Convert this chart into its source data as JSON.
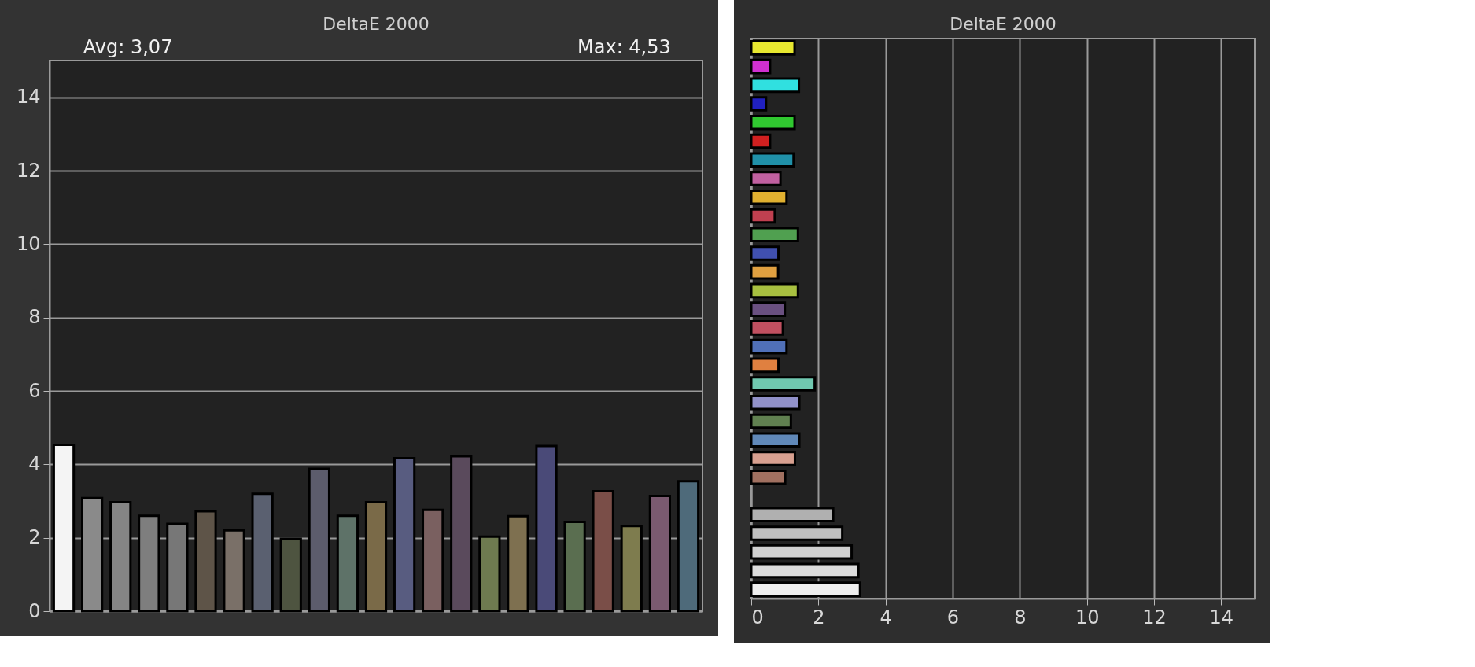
{
  "chart_data": [
    {
      "type": "bar",
      "title": "DeltaE 2000",
      "annotations": [
        "Avg: 3,07",
        "Max: 4,53"
      ],
      "categories": [
        null,
        null,
        null,
        null,
        null,
        null,
        null,
        null,
        null,
        null,
        null,
        null,
        null,
        null,
        null,
        null,
        null,
        null,
        null,
        null,
        null,
        null,
        null
      ],
      "values": [
        4.53,
        3.08,
        2.97,
        2.6,
        2.38,
        2.72,
        2.2,
        3.2,
        1.97,
        3.88,
        2.6,
        2.97,
        4.17,
        2.76,
        4.22,
        2.03,
        2.59,
        4.5,
        2.43,
        3.27,
        2.32,
        3.14,
        3.54
      ],
      "colors": [
        "#f4f4f4",
        "#8a8a8a",
        "#858585",
        "#7e7e7e",
        "#777777",
        "#5e5448",
        "#7a7068",
        "#5a6070",
        "#4e5440",
        "#5c5c6c",
        "#5e7268",
        "#7a6a48",
        "#585c80",
        "#7a6060",
        "#5a4a5c",
        "#6e7a50",
        "#7e7050",
        "#4a4a78",
        "#5a6e50",
        "#7a4e48",
        "#7e7c4e",
        "#7a5a70",
        "#4e6a7a"
      ],
      "ylim": [
        0,
        15
      ],
      "yticks": [
        0,
        2,
        4,
        6,
        8,
        10,
        12,
        14
      ],
      "grid": "y",
      "tick_labels": "y"
    },
    {
      "type": "bar",
      "orientation": "horizontal",
      "title": "DeltaE 2000",
      "categories": [
        null,
        null,
        null,
        null,
        null,
        null,
        null,
        null,
        null,
        null,
        null,
        null,
        null,
        null,
        null,
        null,
        null,
        null,
        null,
        null,
        null,
        null,
        null,
        null,
        null,
        null,
        null,
        null,
        null,
        null
      ],
      "values": [
        1.29,
        0.56,
        1.42,
        0.44,
        1.29,
        0.56,
        1.26,
        0.87,
        1.05,
        0.7,
        1.39,
        0.81,
        0.8,
        1.39,
        1.0,
        0.94,
        1.05,
        0.81,
        1.89,
        1.43,
        1.18,
        1.43,
        1.3,
        1.01,
        null,
        2.44,
        2.71,
        2.99,
        3.19,
        3.24
      ],
      "colors": [
        "#e8e830",
        "#d030d0",
        "#30e0e0",
        "#2020c0",
        "#30c830",
        "#d02020",
        "#2090a8",
        "#c060a0",
        "#e0b030",
        "#c04050",
        "#50a050",
        "#4050b0",
        "#e0a040",
        "#a8c040",
        "#6a5080",
        "#c05060",
        "#5070b8",
        "#e08040",
        "#70c8b0",
        "#9090c8",
        "#608050",
        "#6088b8",
        "#d8a090",
        "#a07060",
        null,
        "#b0b0b0",
        "#c0c0c0",
        "#d0d0d0",
        "#dcdcdc",
        "#eeeeee"
      ],
      "xlim": [
        0,
        15
      ],
      "xticks": [
        0,
        2,
        4,
        6,
        8,
        10,
        12,
        14
      ],
      "grid": "x",
      "tick_labels": "x"
    }
  ]
}
